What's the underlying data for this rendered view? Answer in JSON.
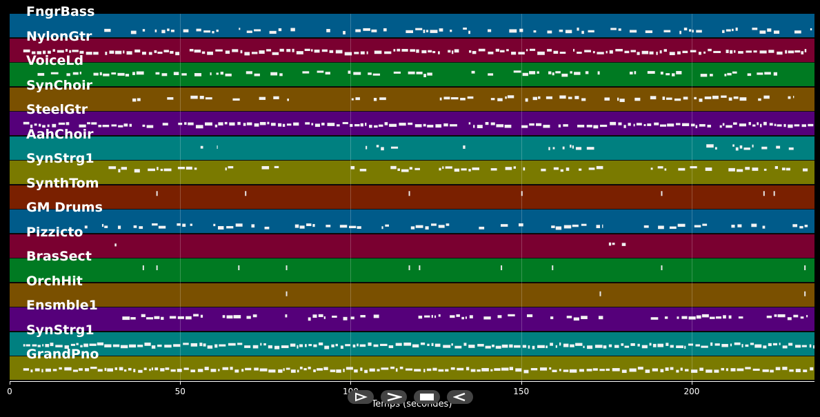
{
  "chart_data": {
    "type": "piano-roll",
    "xlabel": "Temps (secondes)",
    "xlim": [
      0,
      236
    ],
    "xticks": [
      0,
      50,
      100,
      150,
      200
    ],
    "grid": true,
    "tracks": [
      {
        "name": "FngrBass",
        "color": "#005b8a",
        "segments": [
          [
            22,
            236
          ]
        ],
        "density": 0.6,
        "row": 0.7
      },
      {
        "name": "NylonGtr",
        "color": "#7a0030",
        "segments": [
          [
            4,
            234
          ]
        ],
        "density": 0.9,
        "row": 0.55
      },
      {
        "name": "VoiceLd",
        "color": "#007a22",
        "segments": [
          [
            6,
            35
          ],
          [
            36,
            104
          ],
          [
            105,
            230
          ]
        ],
        "density": 0.6,
        "row": 0.45
      },
      {
        "name": "SynChoir",
        "color": "#7a5000",
        "segments": [
          [
            36,
            82
          ],
          [
            99,
            170
          ],
          [
            173,
            230
          ]
        ],
        "density": 0.6,
        "row": 0.45
      },
      {
        "name": "SteelGtr",
        "color": "#55007a",
        "segments": [
          [
            4,
            236
          ]
        ],
        "density": 0.9,
        "row": 0.55
      },
      {
        "name": "AahChoir",
        "color": "#008080",
        "segments": [
          [
            54,
            61
          ],
          [
            102,
            114
          ],
          [
            131,
            138
          ],
          [
            158,
            172
          ],
          [
            202,
            230
          ]
        ],
        "density": 0.6,
        "row": 0.45
      },
      {
        "name": "SynStrg1",
        "color": "#7a7a00",
        "segments": [
          [
            29,
            82
          ],
          [
            100,
            174
          ],
          [
            188,
            234
          ]
        ],
        "density": 0.6,
        "row": 0.35
      },
      {
        "name": "SynthTom",
        "color": "#7a2000",
        "segments": [
          [
            43,
            43.5
          ],
          [
            69,
            69.5
          ],
          [
            117,
            117.5
          ],
          [
            150,
            150.5
          ],
          [
            191,
            191.5
          ],
          [
            221,
            221.5
          ],
          [
            224,
            224.5
          ]
        ],
        "density": 1,
        "row": 0.35
      },
      {
        "name": "GM Drums",
        "color": "#005b8a",
        "segments": [
          [
            22,
            174
          ],
          [
            186,
            234
          ]
        ],
        "density": 0.5,
        "row": 0.7
      },
      {
        "name": "Pizzicto",
        "color": "#7a0030",
        "segments": [
          [
            29,
            33
          ],
          [
            173,
            188
          ]
        ],
        "density": 0.5,
        "row": 0.45
      },
      {
        "name": "BrasSect",
        "color": "#007a22",
        "segments": [
          [
            39,
            39.5
          ],
          [
            43,
            43.5
          ],
          [
            67,
            67.5
          ],
          [
            81,
            81.5
          ],
          [
            117,
            117.5
          ],
          [
            120,
            120.5
          ],
          [
            144,
            144.5
          ],
          [
            159,
            159.5
          ],
          [
            191,
            191.5
          ],
          [
            233,
            233.5
          ]
        ],
        "density": 1,
        "row": 0.4
      },
      {
        "name": "OrchHit",
        "color": "#7a5000",
        "segments": [
          [
            81,
            81.5
          ],
          [
            173,
            173.5
          ],
          [
            233,
            233.5
          ]
        ],
        "density": 1,
        "row": 0.45
      },
      {
        "name": "Ensmble1",
        "color": "#55007a",
        "segments": [
          [
            29,
            82
          ],
          [
            85,
            99
          ],
          [
            100,
            174
          ],
          [
            188,
            234
          ]
        ],
        "density": 0.6,
        "row": 0.4
      },
      {
        "name": "SynStrg1",
        "color": "#008080",
        "segments": [
          [
            4,
            236
          ]
        ],
        "density": 1,
        "row": 0.55
      },
      {
        "name": "GrandPno",
        "color": "#7a7a00",
        "segments": [
          [
            4,
            236
          ]
        ],
        "density": 1,
        "row": 0.55
      }
    ]
  },
  "controls": [
    {
      "name": "play-forward-button",
      "icon": "play-outline-icon"
    },
    {
      "name": "fast-forward-button",
      "icon": "chevron-right-icon"
    },
    {
      "name": "stop-button",
      "icon": "stop-icon"
    },
    {
      "name": "rewind-button",
      "icon": "play-back-icon"
    }
  ]
}
